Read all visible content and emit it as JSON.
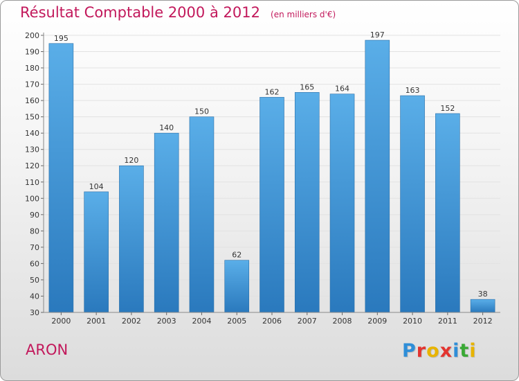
{
  "header": {
    "title": "Résultat Comptable 2000 à 2012",
    "unit": "(en milliers d'€)"
  },
  "footer": {
    "commune": "ARON",
    "logo": "Proxiti",
    "logo_letter_colors": [
      "#2e8ed8",
      "#e3342f",
      "#e8b400",
      "#e3342f",
      "#2e8ed8",
      "#3aa935",
      "#e8b400"
    ]
  },
  "colors": {
    "accent": "#c2185b",
    "bar_top": "#5aaee8",
    "bar_bottom": "#2a79bd"
  },
  "chart_data": {
    "type": "bar",
    "title": "Résultat Comptable 2000 à 2012",
    "xlabel": "",
    "ylabel": "",
    "ylim": [
      30,
      200
    ],
    "ytick_step": 10,
    "grid": true,
    "categories": [
      "2000",
      "2001",
      "2002",
      "2003",
      "2004",
      "2005",
      "2006",
      "2007",
      "2008",
      "2009",
      "2010",
      "2011",
      "2012"
    ],
    "values": [
      195,
      104,
      120,
      140,
      150,
      62,
      162,
      165,
      164,
      197,
      163,
      152,
      38
    ]
  }
}
